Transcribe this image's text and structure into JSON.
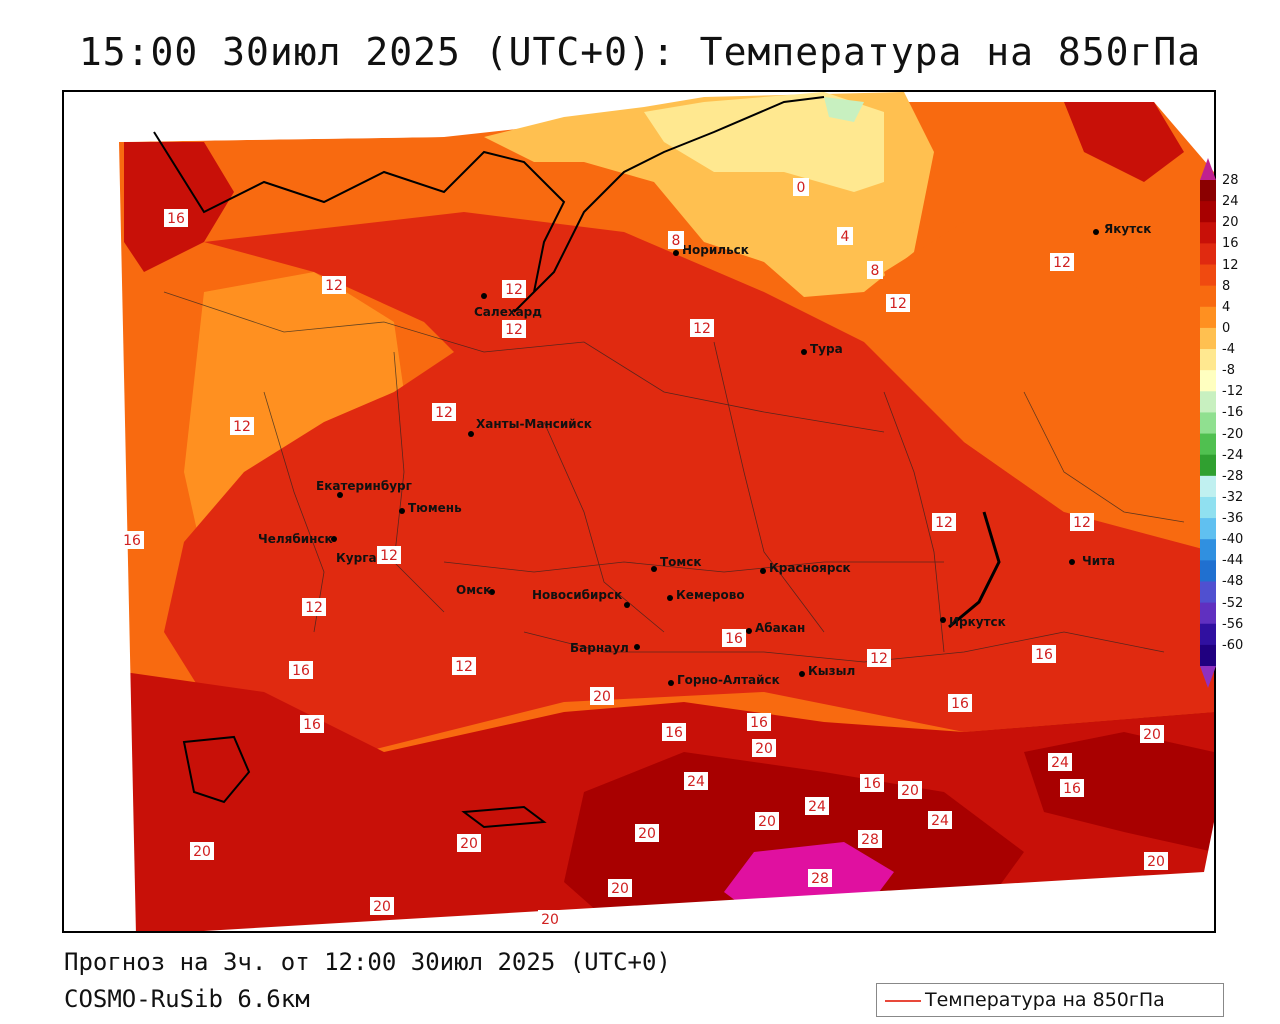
{
  "title": "15:00 30июл 2025 (UTC+0): Температура на 850гПа",
  "footer": {
    "forecast": "Прогноз на 3ч. от 12:00 30июл 2025 (UTC+0)",
    "model": "COSMO-RuSib 6.6км"
  },
  "legend": {
    "label": "Температура на 850гПа",
    "line_color": "#e8483a"
  },
  "colorbar": {
    "ticks": [
      "28",
      "24",
      "20",
      "16",
      "12",
      "8",
      "4",
      "0",
      "-4",
      "-8",
      "-12",
      "-16",
      "-20",
      "-24",
      "-28",
      "-32",
      "-36",
      "-40",
      "-44",
      "-48",
      "-52",
      "-56",
      "-60"
    ],
    "colors": [
      "#8b0000",
      "#a80000",
      "#c81008",
      "#e02a10",
      "#f04a10",
      "#f86a10",
      "#ff9020",
      "#ffc050",
      "#ffe890",
      "#ffffc0",
      "#c8f0c0",
      "#90e090",
      "#50c050",
      "#30a030",
      "#c0f0f0",
      "#90e0f0",
      "#60c0f0",
      "#3090e0",
      "#2070d0",
      "#5050d0",
      "#6030c0",
      "#3010a0",
      "#200080"
    ]
  },
  "cities": [
    {
      "name": "Якутск"
    },
    {
      "name": "Норильск"
    },
    {
      "name": "Салехард"
    },
    {
      "name": "Тура"
    },
    {
      "name": "Ханты-Мансийск"
    },
    {
      "name": "Екатеринбург"
    },
    {
      "name": "Тюмень"
    },
    {
      "name": "Челябинск"
    },
    {
      "name": "Курган"
    },
    {
      "name": "Омск"
    },
    {
      "name": "Томск"
    },
    {
      "name": "Новосибирск"
    },
    {
      "name": "Кемерово"
    },
    {
      "name": "Красноярск"
    },
    {
      "name": "Абакан"
    },
    {
      "name": "Барнаул"
    },
    {
      "name": "Горно-Алтайск"
    },
    {
      "name": "Кызыл"
    },
    {
      "name": "Иркутск"
    },
    {
      "name": "Чита"
    }
  ],
  "isotherm_labels": [
    "16",
    "12",
    "12",
    "12",
    "12",
    "12",
    "12",
    "16",
    "12",
    "8",
    "0",
    "4",
    "8",
    "12",
    "12",
    "12",
    "12",
    "16",
    "12",
    "16",
    "16",
    "12",
    "16",
    "20",
    "16",
    "16",
    "20",
    "16",
    "24",
    "16",
    "20",
    "24",
    "16",
    "20",
    "24",
    "20",
    "20",
    "28",
    "24",
    "20",
    "20",
    "28",
    "20",
    "20",
    "20",
    "20",
    "12"
  ]
}
